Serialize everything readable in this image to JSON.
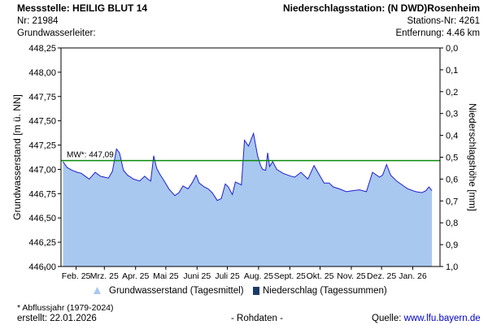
{
  "header": {
    "station_title": "Messstelle: HEILIG BLUT 14",
    "station_nr": "Nr: 21984",
    "aquifer": "Grundwasserleiter:",
    "precip_station": "Niederschlagsstation: (N DWD)Rosenheim",
    "precip_station_nr": "Stations-Nr: 4261",
    "distance": "Entfernung: 4.46 km"
  },
  "footer": {
    "note": "* Abflussjahr (1979-2024)",
    "created": "erstellt:  22.01.2026",
    "raw": "- Rohdaten -",
    "source_label": "Quelle:",
    "source_link": "www.lfu.bayern.de"
  },
  "colors": {
    "area_fill": "#a8c8f0",
    "line": "#1f1fd0",
    "mean_line": "#0a8a0a",
    "precip": "#1a3a6a"
  },
  "chart_data": {
    "type": "area",
    "ylabel": "Grundwasserstand [m ü. NN]",
    "y2label": "Niederschlagshöhe [mm]",
    "ylim": [
      446.0,
      448.25
    ],
    "y_ticks": [
      "446,00",
      "446,25",
      "446,50",
      "446,75",
      "447,00",
      "447,25",
      "447,50",
      "447,75",
      "448,00",
      "448,25"
    ],
    "y2lim": [
      0,
      1.0
    ],
    "y2_reversed": true,
    "y2_ticks": [
      "0,0",
      "0,1",
      "0,2",
      "0,3",
      "0,4",
      "0,5",
      "0,6",
      "0,7",
      "0,8",
      "0,9",
      "1,0"
    ],
    "x_ticks": [
      "Feb. 25",
      "Mrz. 25",
      "Apr. 25",
      "Mai 25",
      "Juni 25",
      "Juli 25",
      "Aug. 25",
      "Sept. 25",
      "Okt. 25",
      "Nov. 25",
      "Dez. 25",
      "Jan. 26"
    ],
    "mean_label": "MW*: 447,09",
    "mean_value": 447.09,
    "legend": [
      {
        "label": "Grundwasserstand (Tagesmittel)",
        "symbol": "triangle"
      },
      {
        "label": "Niederschlag (Tagessummen)",
        "symbol": "square"
      }
    ],
    "series": [
      {
        "name": "Grundwasserstand (Tagesmittel)",
        "x": [
          "2025-01-19",
          "2025-01-23",
          "2025-01-28",
          "2025-02-02",
          "2025-02-06",
          "2025-02-10",
          "2025-02-14",
          "2025-02-20",
          "2025-02-25",
          "2025-03-01",
          "2025-03-05",
          "2025-03-09",
          "2025-03-13",
          "2025-03-16",
          "2025-03-20",
          "2025-03-24",
          "2025-03-30",
          "2025-04-05",
          "2025-04-10",
          "2025-04-13",
          "2025-04-16",
          "2025-04-19",
          "2025-04-22",
          "2025-04-25",
          "2025-04-30",
          "2025-05-04",
          "2025-05-10",
          "2025-05-14",
          "2025-05-18",
          "2025-05-23",
          "2025-05-27",
          "2025-05-31",
          "2025-06-03",
          "2025-06-08",
          "2025-06-12",
          "2025-06-16",
          "2025-06-21",
          "2025-06-25",
          "2025-06-29",
          "2025-07-02",
          "2025-07-06",
          "2025-07-09",
          "2025-07-11",
          "2025-07-15",
          "2025-07-18",
          "2025-07-22",
          "2025-07-27",
          "2025-07-31",
          "2025-08-03",
          "2025-08-05",
          "2025-08-08",
          "2025-08-10",
          "2025-08-12",
          "2025-08-15",
          "2025-08-19",
          "2025-08-25",
          "2025-09-02",
          "2025-09-06",
          "2025-09-12",
          "2025-09-19",
          "2025-09-25",
          "2025-10-01",
          "2025-10-05",
          "2025-10-10",
          "2025-10-14",
          "2025-10-20",
          "2025-10-27",
          "2025-11-02",
          "2025-11-09",
          "2025-11-16",
          "2025-11-22",
          "2025-11-29",
          "2025-12-02",
          "2025-12-06",
          "2025-12-10",
          "2025-12-12",
          "2025-12-16",
          "2025-12-20",
          "2025-12-27",
          "2026-01-04",
          "2026-01-10",
          "2026-01-14",
          "2026-01-17",
          "2026-01-20"
        ],
        "y": [
          447.08,
          447.02,
          446.99,
          446.97,
          446.96,
          446.93,
          446.9,
          446.97,
          446.93,
          446.92,
          446.91,
          446.98,
          447.21,
          447.17,
          446.99,
          446.94,
          446.9,
          446.88,
          446.93,
          446.9,
          446.88,
          447.14,
          447.01,
          446.95,
          446.87,
          446.8,
          446.73,
          446.76,
          446.83,
          446.8,
          446.86,
          446.94,
          446.86,
          446.82,
          446.8,
          446.76,
          446.68,
          446.7,
          446.85,
          446.82,
          446.74,
          446.87,
          446.86,
          446.84,
          447.3,
          447.24,
          447.37,
          447.14,
          447.04,
          447.0,
          446.99,
          447.17,
          447.03,
          447.08,
          447.0,
          446.96,
          446.93,
          446.92,
          446.97,
          446.9,
          447.04,
          446.93,
          446.86,
          446.86,
          446.82,
          446.8,
          446.77,
          446.78,
          446.79,
          446.77,
          446.97,
          446.92,
          446.94,
          447.05,
          446.94,
          446.92,
          446.88,
          446.85,
          446.8,
          446.77,
          446.76,
          446.78,
          446.82,
          446.78
        ]
      }
    ]
  }
}
